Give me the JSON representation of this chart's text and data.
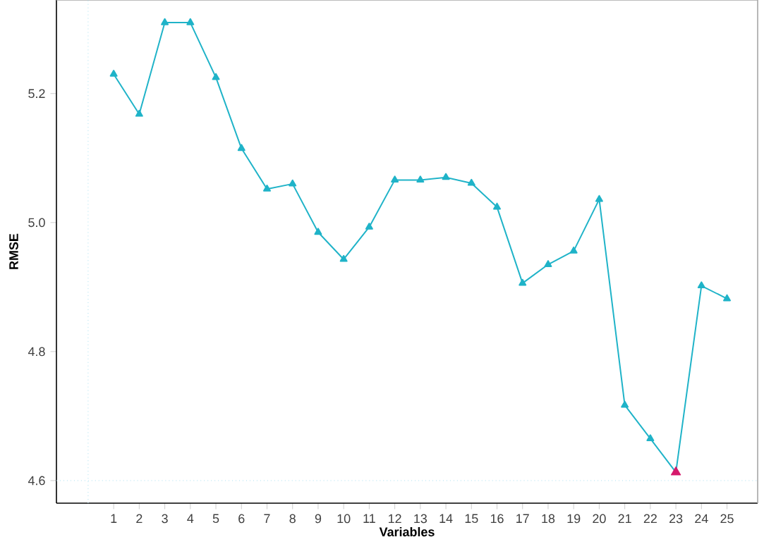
{
  "chart_data": {
    "type": "line",
    "xlabel": "Variables",
    "ylabel": "RMSE",
    "marker": "triangle",
    "line_style": "solid",
    "grid": false,
    "x": [
      1,
      2,
      3,
      4,
      5,
      6,
      7,
      8,
      9,
      10,
      11,
      12,
      13,
      14,
      15,
      16,
      17,
      18,
      19,
      20,
      21,
      22,
      23,
      24,
      25
    ],
    "xlim": [
      -1.24,
      26.2
    ],
    "xticks": [
      1,
      2,
      3,
      4,
      5,
      6,
      7,
      8,
      9,
      10,
      11,
      12,
      13,
      14,
      15,
      16,
      17,
      18,
      19,
      20,
      21,
      22,
      23,
      24,
      25
    ],
    "ylim": [
      4.565,
      5.345
    ],
    "yticks": [
      {
        "value": 4.6,
        "label": "4.6"
      },
      {
        "value": 4.8,
        "label": "4.8"
      },
      {
        "value": 5.0,
        "label": "5.0"
      },
      {
        "value": 5.2,
        "label": "5.2"
      }
    ],
    "series": [
      {
        "color": "#1fb3c8",
        "values": [
          5.23,
          5.168,
          5.31,
          5.31,
          5.225,
          5.115,
          5.052,
          5.06,
          4.985,
          4.943,
          4.993,
          5.066,
          5.066,
          5.07,
          5.061,
          5.024,
          4.906,
          4.935,
          4.956,
          5.036,
          4.717,
          4.665,
          4.613,
          4.902,
          4.882
        ]
      },
      {
        "type": "scatter",
        "color": "#d6196b",
        "x": [
          23
        ],
        "values": [
          4.613
        ]
      }
    ],
    "ref_lines": [
      {
        "axis": "x",
        "value": 0,
        "color": "#a8dff0",
        "line_style": "dotted"
      },
      {
        "axis": "y",
        "value": 4.6,
        "color": "#a8dff0",
        "line_style": "dotted"
      }
    ]
  }
}
